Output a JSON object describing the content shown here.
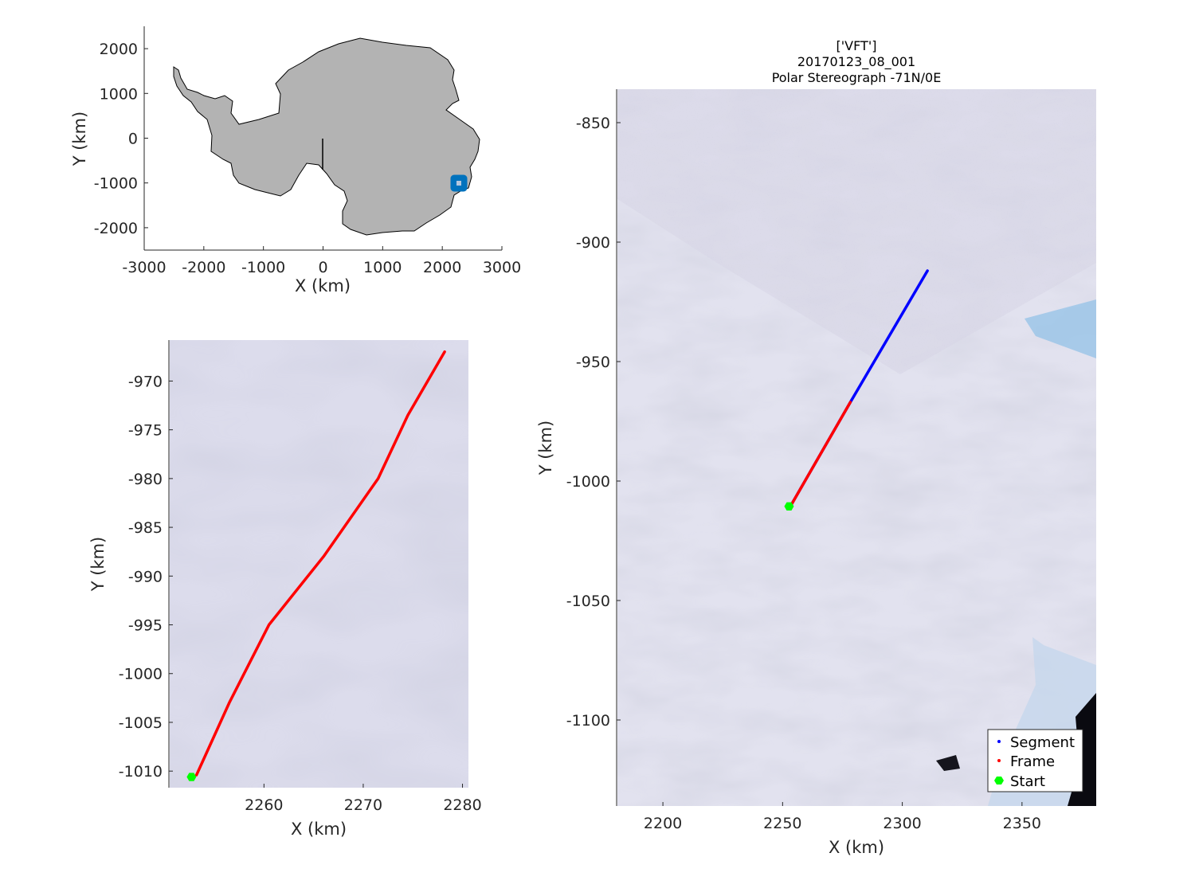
{
  "chart_data": [
    {
      "type": "scatter",
      "name": "inset_map",
      "xlabel": "X (km)",
      "ylabel": "Y (km)",
      "xlim": [
        -3000,
        3000
      ],
      "ylim": [
        -2500,
        2500
      ],
      "xticks": [
        "-3000",
        "-2000",
        "-1000",
        "0",
        "1000",
        "2000",
        "3000"
      ],
      "yticks": [
        "2000",
        "1000",
        "0",
        "-1000",
        "-2000"
      ],
      "continent_color": "#b3b3b3",
      "reference_line": {
        "x": [
          0,
          0
        ],
        "y": [
          0,
          -600
        ]
      },
      "location_marker": {
        "x": 2270,
        "y": -990,
        "color": "#0072bd"
      }
    },
    {
      "type": "line",
      "name": "zoom_frame",
      "xlabel": "X (km)",
      "ylabel": "Y (km)",
      "xlim": [
        2250.5,
        2280.6
      ],
      "ylim": [
        -1011.7,
        -965.8
      ],
      "xticks": [
        "2260",
        "2270",
        "2280"
      ],
      "yticks": [
        "-970",
        "-975",
        "-980",
        "-985",
        "-990",
        "-995",
        "-1000",
        "-1005",
        "-1010"
      ],
      "series": [
        {
          "name": "Frame",
          "color": "#ff0000",
          "x": [
            2253.2,
            2256.5,
            2260.5,
            2266.0,
            2271.5,
            2274.5,
            2278.2
          ],
          "y": [
            -1010.4,
            -1003.0,
            -995.0,
            -988.0,
            -980.0,
            -973.5,
            -967.0
          ]
        }
      ],
      "start": {
        "x": 2252.7,
        "y": -1010.6,
        "color": "#00ff00"
      }
    },
    {
      "type": "line",
      "name": "overview",
      "title": [
        "['VFT']",
        "20170123_08_001",
        "Polar Stereograph -71N/0E"
      ],
      "xlabel": "X (km)",
      "ylabel": "Y (km)",
      "xlim": [
        2181,
        2381
      ],
      "ylim": [
        -1136,
        -836
      ],
      "xticks": [
        "2200",
        "2250",
        "2300",
        "2350"
      ],
      "yticks": [
        "-850",
        "-900",
        "-950",
        "-1000",
        "-1050",
        "-1100"
      ],
      "series": [
        {
          "name": "Segment",
          "color": "#0000ff",
          "x": [
            2253.3,
            2278.3,
            2310.5
          ],
          "y": [
            -1010.5,
            -967.0,
            -912.0
          ]
        },
        {
          "name": "Frame",
          "color": "#ff0000",
          "x": [
            2253.3,
            2278.3
          ],
          "y": [
            -1010.5,
            -967.0
          ]
        }
      ],
      "start": {
        "name": "Start",
        "x": 2252.7,
        "y": -1010.6,
        "color": "#00ff00"
      },
      "legend": {
        "placement": "bottom-right",
        "entries": [
          "Segment",
          "Frame",
          "Start"
        ]
      }
    }
  ]
}
